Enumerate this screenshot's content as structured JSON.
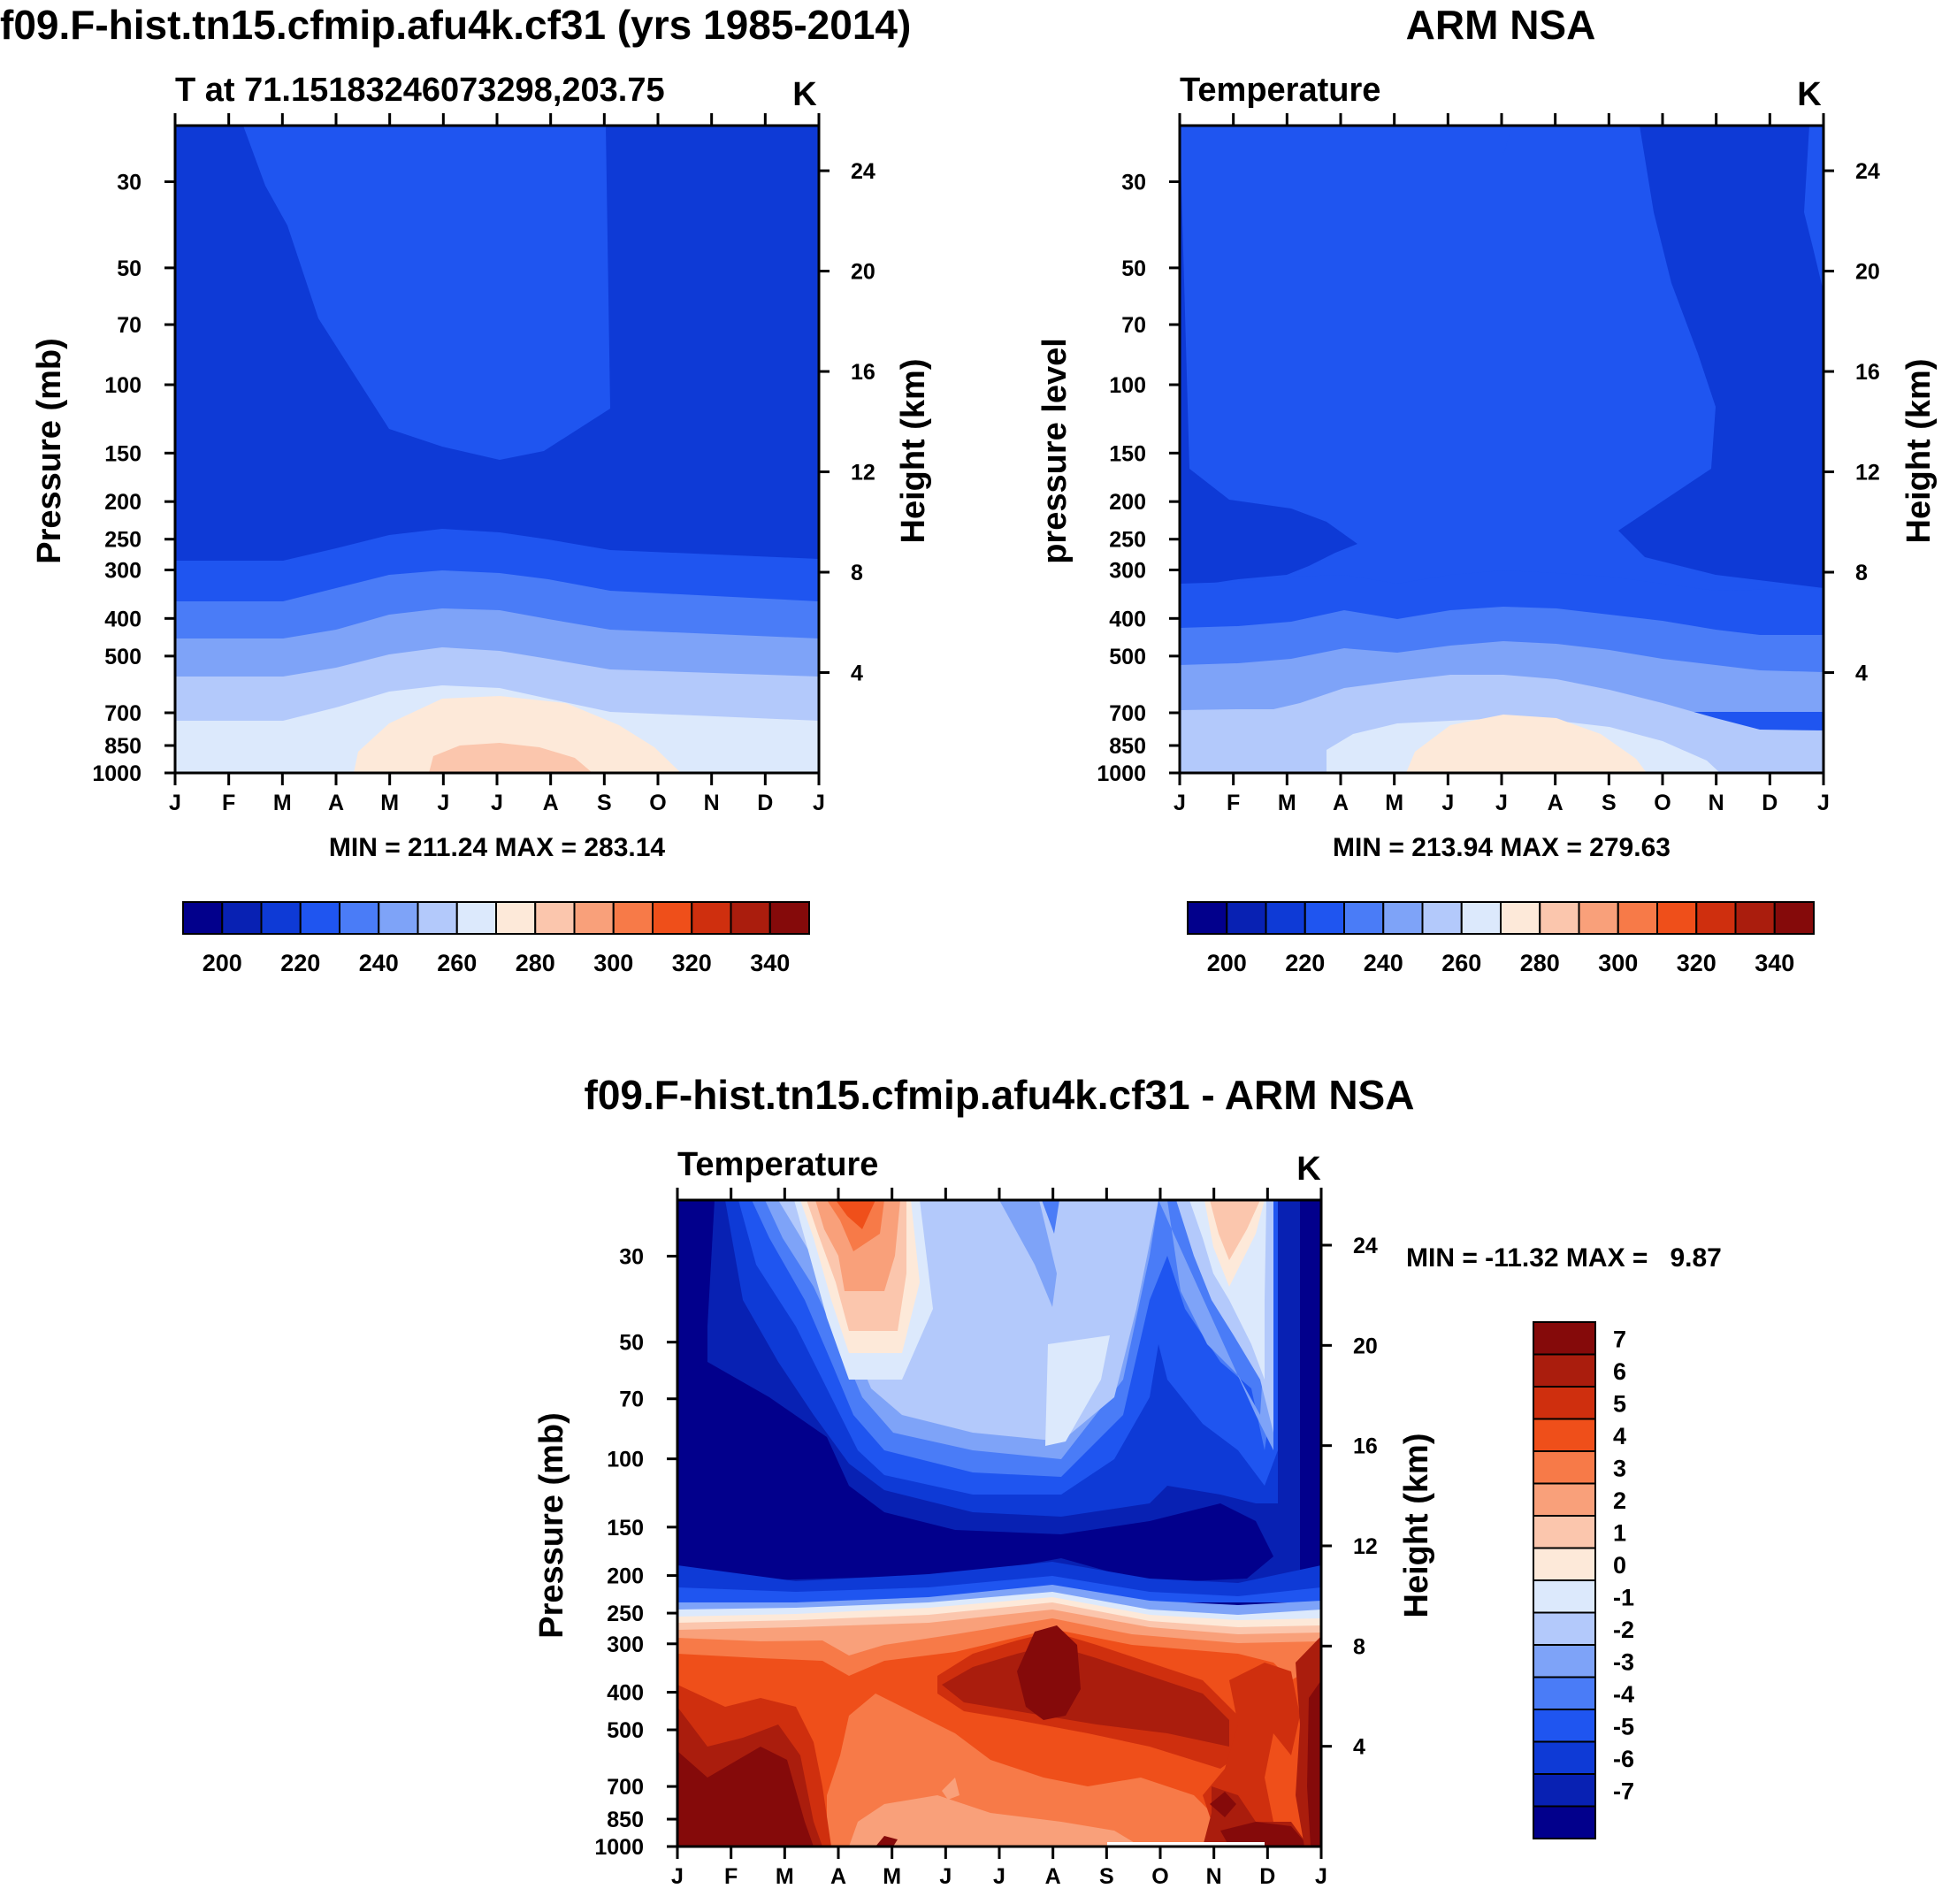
{
  "chart_data": [
    {
      "id": "model",
      "type": "contour",
      "title": "f09.F-hist.tn15.cfmip.afu4k.cf31 (yrs 1985-2014)",
      "left_subtitle": "T at 71.15183246073298,203.75",
      "units": "K",
      "ylabel": "Pressure (mb)",
      "y2label": "Height (km)",
      "month_labels": [
        "J",
        "F",
        "M",
        "A",
        "M",
        "J",
        "J",
        "A",
        "S",
        "O",
        "N",
        "D",
        "J"
      ],
      "pressure_ticks": [
        30,
        50,
        70,
        100,
        150,
        200,
        250,
        300,
        400,
        500,
        700,
        850,
        1000
      ],
      "height_ticks": [
        24,
        20,
        16,
        12,
        8,
        4
      ],
      "stats": "MIN = 211.24 MAX = 283.14",
      "colorbar_labels": [
        "200",
        "220",
        "240",
        "260",
        "280",
        "300",
        "320",
        "340"
      ],
      "colorbar_colors": [
        "#02008c",
        "#0821b3",
        "#0e3ad6",
        "#1f55f0",
        "#4a7cf7",
        "#7ea3f8",
        "#b3c9fb",
        "#dce9fc",
        "#fde9d9",
        "#fbc6ad",
        "#f9a07a",
        "#f77a48",
        "#ef4f1a",
        "#cf2f0e",
        "#aa1d0d",
        "#850a0a"
      ],
      "colorbar_orientation": "horizontal",
      "bands_description": "cold stratosphere above ~300 mb, warm lower troposphere peaking in July near surface"
    },
    {
      "id": "obs",
      "type": "contour",
      "title": "ARM NSA",
      "left_subtitle": "Temperature",
      "units": "K",
      "ylabel": "pressure level",
      "y2label": "Height (km)",
      "month_labels": [
        "J",
        "F",
        "M",
        "A",
        "M",
        "J",
        "J",
        "A",
        "S",
        "O",
        "N",
        "D",
        "J"
      ],
      "pressure_ticks": [
        30,
        50,
        70,
        100,
        150,
        200,
        250,
        300,
        400,
        500,
        700,
        850,
        1000
      ],
      "height_ticks": [
        24,
        20,
        16,
        12,
        8,
        4
      ],
      "stats": "MIN = 213.94 MAX = 279.63",
      "colorbar_labels": [
        "200",
        "220",
        "240",
        "260",
        "280",
        "300",
        "320",
        "340"
      ],
      "colorbar_colors": [
        "#02008c",
        "#0821b3",
        "#0e3ad6",
        "#1f55f0",
        "#4a7cf7",
        "#7ea3f8",
        "#b3c9fb",
        "#dce9fc",
        "#fde9d9",
        "#fbc6ad",
        "#f9a07a",
        "#f77a48",
        "#ef4f1a",
        "#cf2f0e",
        "#aa1d0d",
        "#850a0a"
      ],
      "colorbar_orientation": "horizontal"
    },
    {
      "id": "diff",
      "type": "contour",
      "title": "f09.F-hist.tn15.cfmip.afu4k.cf31 - ARM NSA",
      "left_subtitle": "Temperature",
      "units": "K",
      "ylabel": "Pressure (mb)",
      "y2label": "Height (km)",
      "month_labels": [
        "J",
        "F",
        "M",
        "A",
        "M",
        "J",
        "J",
        "A",
        "S",
        "O",
        "N",
        "D",
        "J"
      ],
      "pressure_ticks": [
        30,
        50,
        70,
        100,
        150,
        200,
        250,
        300,
        400,
        500,
        700,
        850,
        1000
      ],
      "height_ticks": [
        24,
        20,
        16,
        12,
        8,
        4
      ],
      "stats": "MIN = -11.32 MAX =   9.87",
      "colorbar_labels": [
        "7",
        "6",
        "5",
        "4",
        "3",
        "2",
        "1",
        "0",
        "-1",
        "-2",
        "-3",
        "-4",
        "-5",
        "-6",
        "-7"
      ],
      "colorbar_colors": [
        "#850a0a",
        "#aa1d0d",
        "#cf2f0e",
        "#ef4f1a",
        "#f77a48",
        "#f9a07a",
        "#fbc6ad",
        "#fde9d9",
        "#dce9fc",
        "#b3c9fb",
        "#7ea3f8",
        "#4a7cf7",
        "#1f55f0",
        "#0e3ad6",
        "#0821b3",
        "#02008c"
      ],
      "colorbar_orientation": "vertical"
    }
  ]
}
